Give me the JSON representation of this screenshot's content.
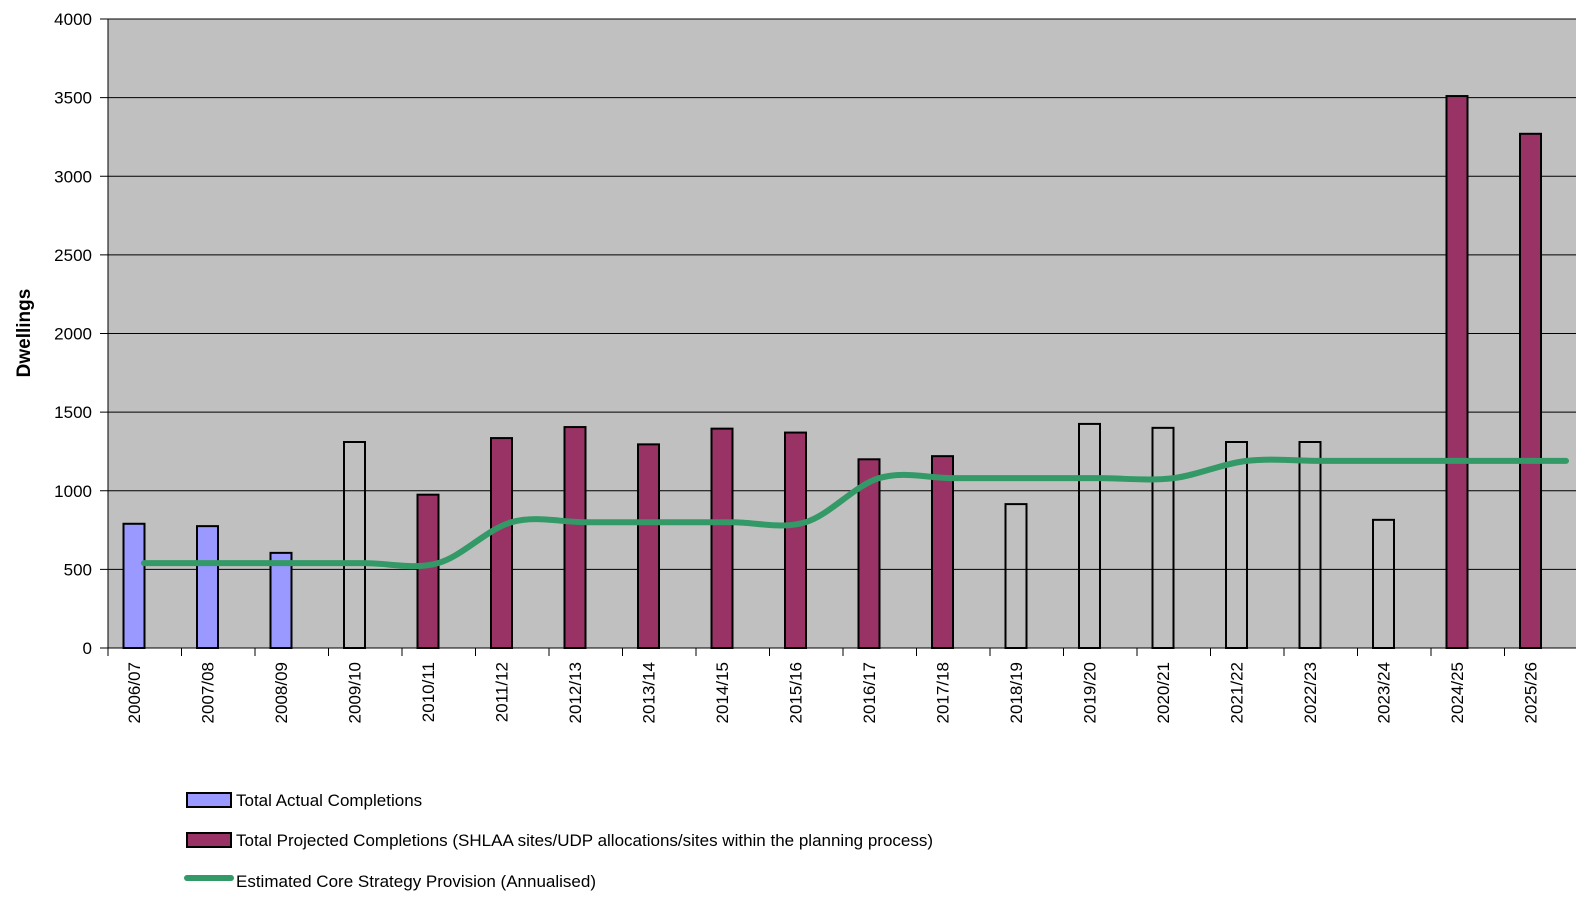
{
  "chart_data": {
    "type": "bar",
    "title": "",
    "xlabel": "",
    "ylabel": "Dwellings",
    "ylim": [
      0,
      4000
    ],
    "yticks": [
      0,
      500,
      1000,
      1500,
      2000,
      2500,
      3000,
      3500,
      4000
    ],
    "grid": true,
    "legend_position": "bottom-left",
    "categories": [
      "2006/07",
      "2007/08",
      "2008/09",
      "2009/10",
      "2010/11",
      "2011/12",
      "2012/13",
      "2013/14",
      "2014/15",
      "2015/16",
      "2016/17",
      "2017/18",
      "2018/19",
      "2019/20",
      "2020/21",
      "2021/22",
      "2022/23",
      "2023/24",
      "2024/25",
      "2025/26"
    ],
    "series": [
      {
        "name": "Total Actual Completions",
        "kind": "bar",
        "color": "#9999ff",
        "values": [
          790,
          775,
          605,
          null,
          null,
          null,
          null,
          null,
          null,
          null,
          null,
          null,
          null,
          null,
          null,
          null,
          null,
          null,
          null,
          null
        ]
      },
      {
        "name": "Total Projected Completions (SHLAA sites/UDP allocations/sites within the planning process)",
        "kind": "bar",
        "color": "#993366",
        "values": [
          null,
          null,
          null,
          1310,
          975,
          1335,
          1405,
          1295,
          1395,
          1370,
          1200,
          1220,
          915,
          1425,
          1400,
          1310,
          1310,
          815,
          3510,
          3270
        ],
        "unfilled_categories": [
          "2009/10",
          "2018/19",
          "2019/20",
          "2020/21",
          "2021/22",
          "2022/23",
          "2023/24"
        ]
      },
      {
        "name": "Estimated Core Strategy Provision (Annualised)",
        "kind": "line",
        "color": "#339966",
        "values": [
          540,
          540,
          540,
          540,
          540,
          800,
          800,
          800,
          800,
          800,
          1080,
          1080,
          1080,
          1080,
          1080,
          1190,
          1190,
          1190,
          1190,
          1190
        ]
      }
    ]
  }
}
